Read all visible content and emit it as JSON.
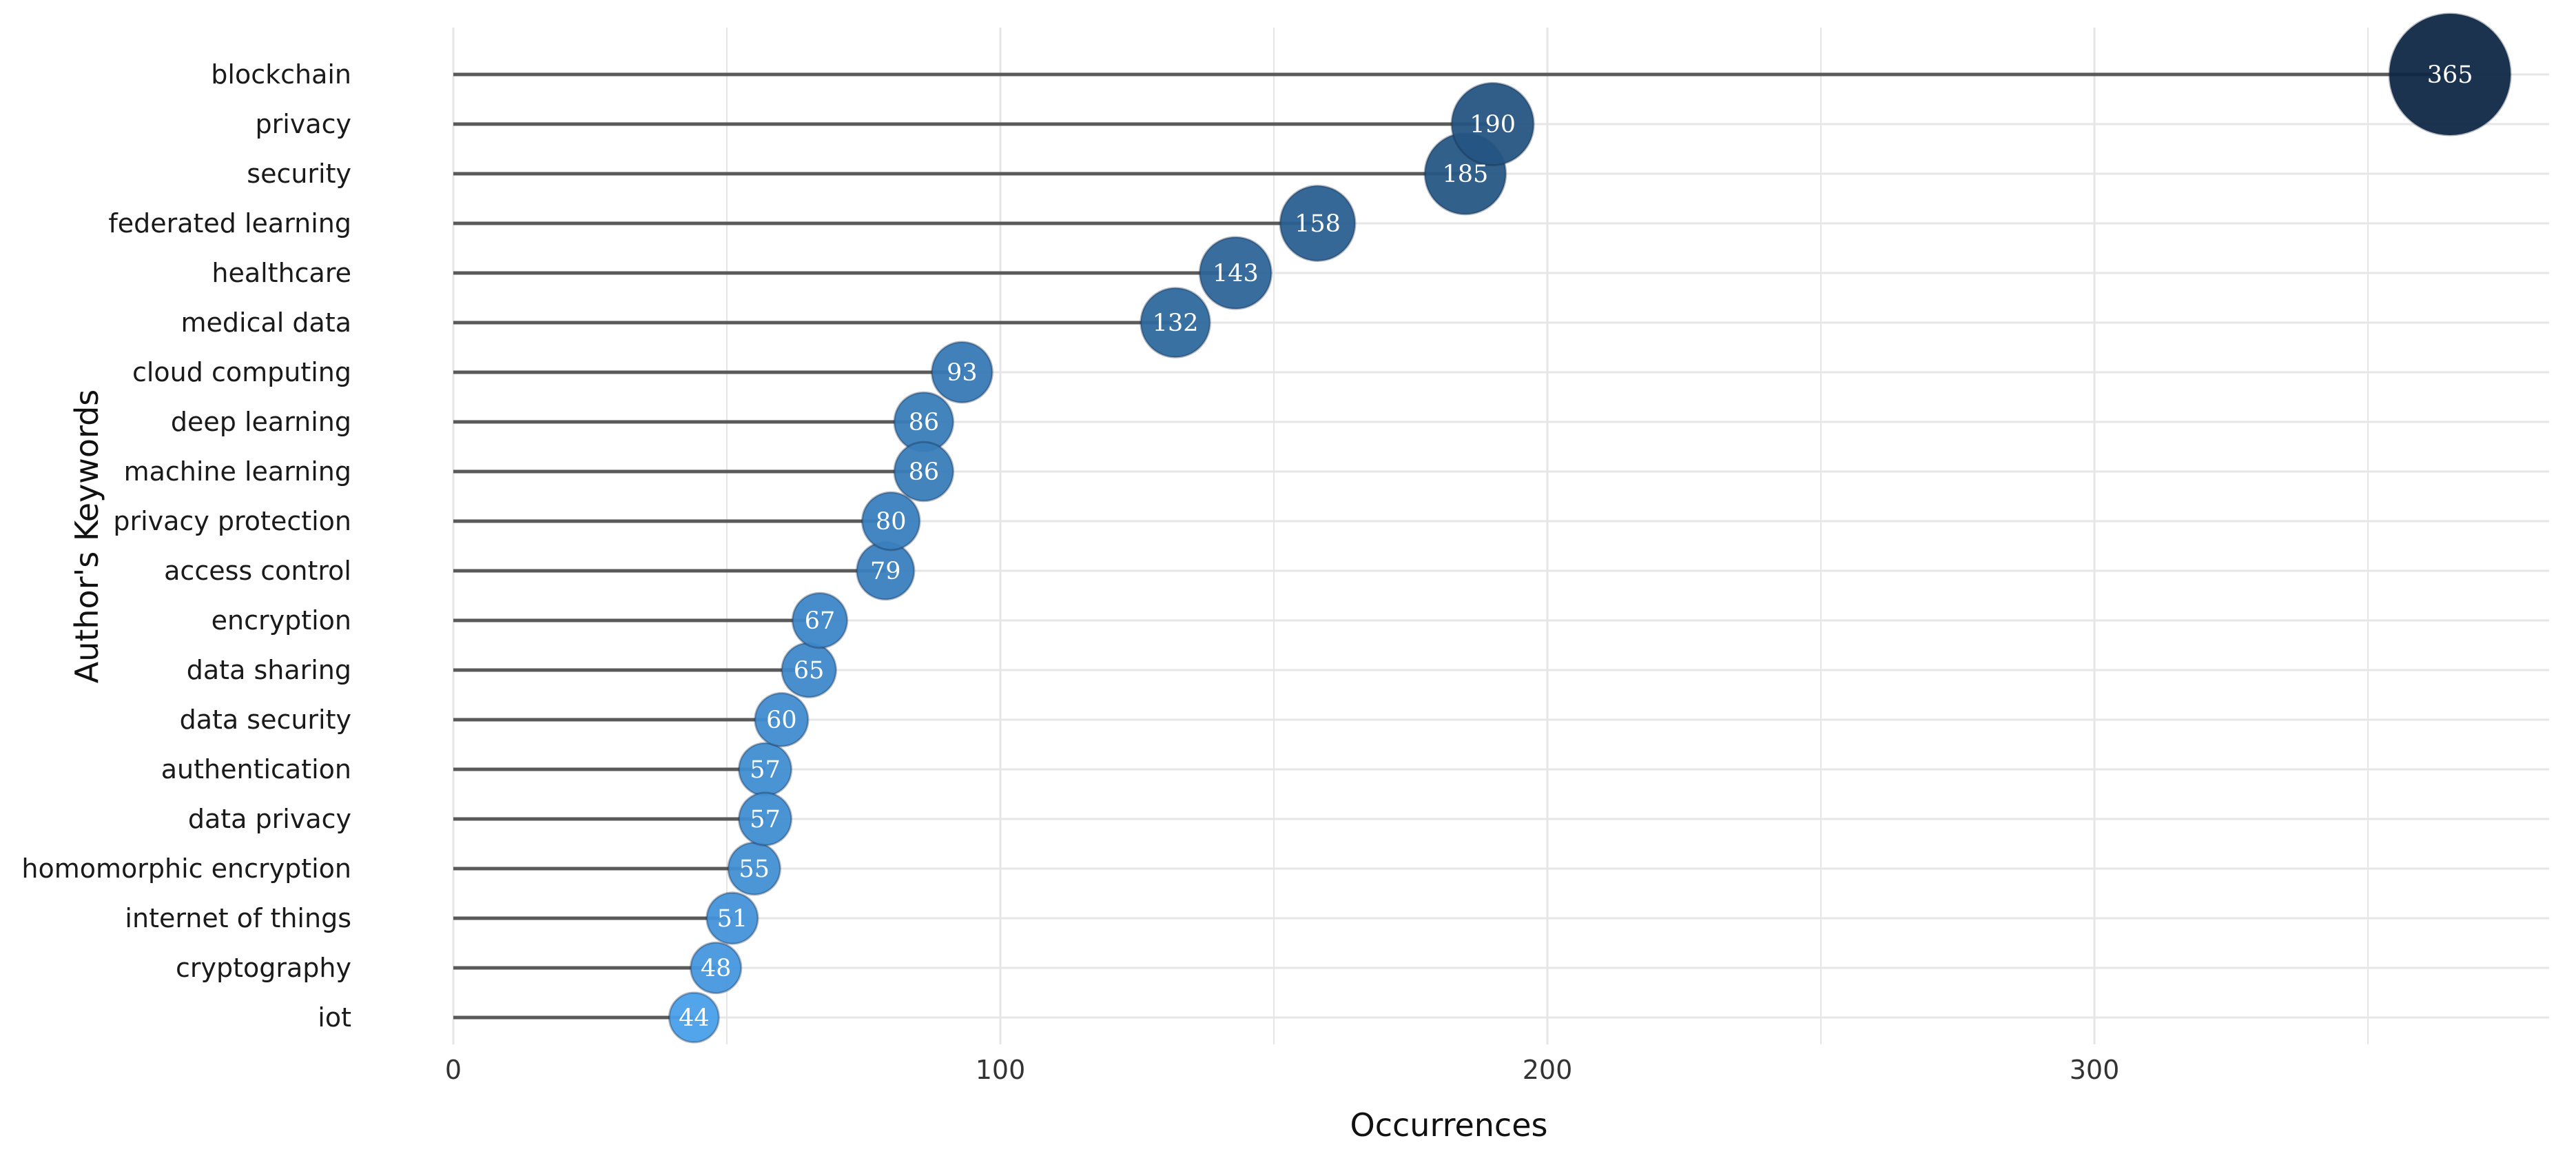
{
  "chart_data": {
    "type": "lollipop",
    "xlabel": "Occurrences",
    "ylabel": "Author's Keywords",
    "xlim": [
      0,
      385
    ],
    "xticks": [
      0,
      100,
      200,
      300
    ],
    "grid": true,
    "colors": {
      "low": "#4aa0ea",
      "high": "#0f2845",
      "stem": "#5a5a5a",
      "grid": "#e6e6e6"
    },
    "categories": [
      "blockchain",
      "privacy",
      "security",
      "federated learning",
      "healthcare",
      "medical data",
      "cloud computing",
      "deep learning",
      "machine learning",
      "privacy protection",
      "access control",
      "encryption",
      "data sharing",
      "data security",
      "authentication",
      "data privacy",
      "homomorphic encryption",
      "internet of things",
      "cryptography",
      "iot"
    ],
    "values": [
      365,
      190,
      185,
      158,
      143,
      132,
      93,
      86,
      86,
      80,
      79,
      67,
      65,
      60,
      57,
      57,
      55,
      51,
      48,
      44
    ]
  }
}
